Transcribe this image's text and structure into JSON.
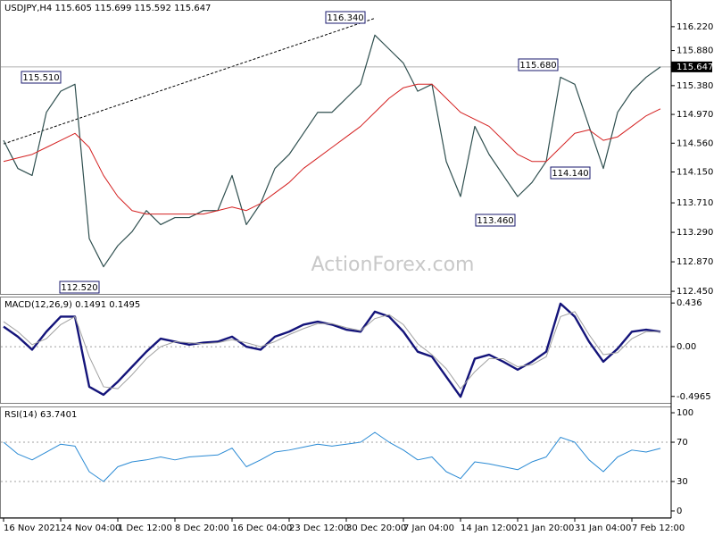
{
  "watermark": "ActionForex.com",
  "chart_data": [
    {
      "type": "line",
      "title": "USDJPY,H4  115.605 115.699 115.592 115.647",
      "categories": [
        "16 Nov 2021",
        null,
        null,
        null,
        "24 Nov 04:00",
        null,
        null,
        null,
        "1 Dec 12:00",
        null,
        null,
        null,
        "8 Dec 20:00",
        null,
        null,
        null,
        "16 Dec 04:00",
        null,
        null,
        null,
        "23 Dec 12:00",
        null,
        null,
        null,
        "30 Dec 20:00",
        null,
        null,
        null,
        "7 Jan 04:00",
        null,
        null,
        null,
        "14 Jan 12:00",
        null,
        null,
        null,
        "21 Jan 20:00",
        null,
        null,
        null,
        "31 Jan 04:00",
        null,
        null,
        null,
        "7 Feb 12:00",
        null,
        null
      ],
      "series": [
        {
          "color": "#2f4f4f",
          "width": 1.2,
          "values": [
            114.6,
            114.2,
            114.1,
            115.0,
            115.3,
            115.4,
            113.2,
            112.8,
            113.1,
            113.3,
            113.6,
            113.4,
            113.5,
            113.5,
            113.6,
            113.6,
            114.1,
            113.4,
            113.7,
            114.2,
            114.4,
            114.7,
            115.0,
            115.0,
            115.2,
            115.4,
            116.1,
            115.9,
            115.7,
            115.3,
            115.4,
            114.3,
            113.8,
            114.8,
            114.4,
            114.1,
            113.8,
            114.0,
            114.3,
            115.5,
            115.4,
            114.8,
            114.2,
            115.0,
            115.3,
            115.5,
            115.647
          ]
        },
        {
          "color": "#d42020",
          "width": 1,
          "values": [
            114.3,
            114.35,
            114.4,
            114.5,
            114.6,
            114.7,
            114.5,
            114.1,
            113.8,
            113.6,
            113.55,
            113.55,
            113.55,
            113.55,
            113.55,
            113.6,
            113.65,
            113.6,
            113.7,
            113.85,
            114.0,
            114.2,
            114.35,
            114.5,
            114.65,
            114.8,
            115.0,
            115.2,
            115.35,
            115.4,
            115.4,
            115.2,
            115.0,
            114.9,
            114.8,
            114.6,
            114.4,
            114.3,
            114.3,
            114.5,
            114.7,
            114.75,
            114.6,
            114.65,
            114.8,
            114.95,
            115.05
          ]
        }
      ],
      "ylim": [
        112.4,
        116.6
      ],
      "yticks": [
        {
          "value": 116.22,
          "label": "116.220"
        },
        {
          "value": 115.88,
          "label": "115.880"
        },
        {
          "value": 115.38,
          "label": "115.380"
        },
        {
          "value": 114.97,
          "label": "114.970"
        },
        {
          "value": 114.56,
          "label": "114.560"
        },
        {
          "value": 114.15,
          "label": "114.150"
        },
        {
          "value": 113.71,
          "label": "113.710"
        },
        {
          "value": 113.29,
          "label": "113.290"
        },
        {
          "value": 112.87,
          "label": "112.870"
        },
        {
          "value": 112.45,
          "label": "112.450"
        }
      ],
      "last_price": 115.647,
      "trendline": [
        114.55,
        116.34
      ],
      "annotations": [
        "115.510",
        "116.340",
        "112.520",
        "113.460",
        "115.680",
        "114.140"
      ]
    },
    {
      "type": "line",
      "title": "MACD(12,26,9) 0.1491 0.1495",
      "series": [
        {
          "color": "#14147a",
          "width": 2.4,
          "values": [
            0.2,
            0.1,
            -0.03,
            0.15,
            0.3,
            0.3,
            -0.4,
            -0.48,
            -0.35,
            -0.2,
            -0.05,
            0.08,
            0.05,
            0.02,
            0.04,
            0.05,
            0.1,
            0.0,
            -0.03,
            0.1,
            0.15,
            0.22,
            0.25,
            0.22,
            0.17,
            0.15,
            0.35,
            0.3,
            0.15,
            -0.05,
            -0.1,
            -0.3,
            -0.5,
            -0.12,
            -0.08,
            -0.15,
            -0.23,
            -0.15,
            -0.05,
            0.43,
            0.3,
            0.05,
            -0.15,
            -0.02,
            0.15,
            0.17,
            0.1491
          ]
        },
        {
          "color": "#a0a0a0",
          "width": 1,
          "values": [
            0.25,
            0.15,
            0.02,
            0.08,
            0.22,
            0.3,
            -0.1,
            -0.4,
            -0.42,
            -0.28,
            -0.12,
            0.0,
            0.05,
            0.04,
            0.03,
            0.04,
            0.07,
            0.04,
            0.0,
            0.05,
            0.12,
            0.18,
            0.23,
            0.23,
            0.19,
            0.16,
            0.28,
            0.32,
            0.22,
            0.03,
            -0.08,
            -0.22,
            -0.42,
            -0.25,
            -0.12,
            -0.12,
            -0.2,
            -0.18,
            -0.1,
            0.3,
            0.35,
            0.12,
            -0.08,
            -0.06,
            0.08,
            0.15,
            0.1495
          ]
        }
      ],
      "ylim": [
        -0.57,
        0.5
      ],
      "yticks": [
        0.436,
        {
          "value": 0,
          "label": "0.00"
        },
        -0.4965
      ],
      "levels": [
        0
      ]
    },
    {
      "type": "line",
      "title": "RSI(14) 63.7401",
      "series": [
        {
          "color": "#2a8ad4",
          "width": 1,
          "values": [
            70,
            58,
            52,
            60,
            68,
            66,
            40,
            30,
            45,
            50,
            52,
            55,
            52,
            55,
            56,
            57,
            64,
            45,
            52,
            60,
            62,
            65,
            68,
            66,
            68,
            70,
            80,
            70,
            62,
            52,
            55,
            40,
            33,
            50,
            48,
            45,
            42,
            50,
            55,
            75,
            70,
            52,
            40,
            55,
            62,
            60,
            63.7401
          ]
        }
      ],
      "ylim": [
        -7.3,
        106.4
      ],
      "yticks": [
        100,
        70,
        30,
        0
      ],
      "levels": [
        70,
        30
      ]
    }
  ]
}
